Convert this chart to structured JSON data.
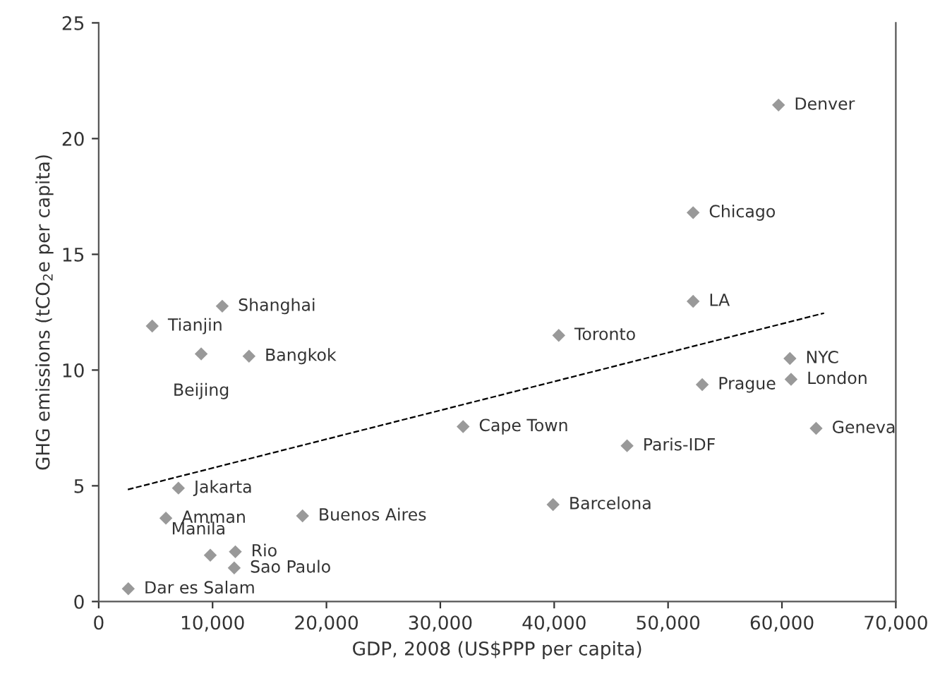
{
  "chart_data": {
    "type": "scatter",
    "xlabel": "GDP, 2008 (US$PPP per capita)",
    "ylabel": "GHG emissions (tCO$_{2}$e per capita)",
    "series": [
      {
        "type": "scatter",
        "color": "#999999",
        "marker": "diamond",
        "x": [
          59700,
          52200,
          52200,
          40400,
          60700,
          60800,
          53000,
          32000,
          63000,
          46400,
          39900,
          10850,
          4700,
          9000,
          13200,
          7000,
          5900,
          17900,
          9800,
          12000,
          11900,
          2600
        ],
        "values": [
          21.45,
          16.8,
          12.97,
          11.5,
          10.5,
          9.6,
          9.37,
          7.56,
          7.48,
          6.73,
          4.19,
          12.76,
          11.9,
          10.7,
          10.6,
          4.9,
          3.6,
          3.7,
          2.0,
          2.15,
          1.45,
          0.55
        ]
      },
      {
        "type": "line",
        "color": "#000000",
        "line_style": "dashed",
        "marker": "none",
        "x": [
          2560,
          63700
        ],
        "values": [
          4.84,
          12.46
        ]
      }
    ],
    "annotations": [
      {
        "text": "Denver",
        "x": 59700,
        "y": 21.45
      },
      {
        "text": "Chicago",
        "x": 52200,
        "y": 16.8
      },
      {
        "text": "LA",
        "x": 52200,
        "y": 12.97
      },
      {
        "text": "Toronto",
        "x": 40400,
        "y": 11.5
      },
      {
        "text": "NYC",
        "x": 60700,
        "y": 10.5
      },
      {
        "text": "London",
        "x": 60800,
        "y": 9.6
      },
      {
        "text": "Prague",
        "x": 53000,
        "y": 9.37
      },
      {
        "text": "Cape Town",
        "x": 32000,
        "y": 7.56
      },
      {
        "text": "Geneva",
        "x": 63000,
        "y": 7.48
      },
      {
        "text": "Paris-IDF",
        "x": 46400,
        "y": 6.73
      },
      {
        "text": "Barcelona",
        "x": 39900,
        "y": 4.19
      },
      {
        "text": "Shanghai",
        "x": 10850,
        "y": 12.76
      },
      {
        "text": "Tianjin",
        "x": 4700,
        "y": 11.9
      },
      {
        "text": "Beijing",
        "x": 9000,
        "y": 10.7
      },
      {
        "text": "Bangkok",
        "x": 13200,
        "y": 10.6
      },
      {
        "text": "Jakarta",
        "x": 7000,
        "y": 4.9
      },
      {
        "text": "Amman",
        "x": 5900,
        "y": 3.6
      },
      {
        "text": "Buenos Aires",
        "x": 17900,
        "y": 3.7
      },
      {
        "text": "Manila",
        "x": 9800,
        "y": 2.0
      },
      {
        "text": "Rio",
        "x": 12000,
        "y": 2.15
      },
      {
        "text": "Sao Paulo",
        "x": 11900,
        "y": 1.45
      },
      {
        "text": "Dar es Salam",
        "x": 2600,
        "y": 0.55
      }
    ],
    "xlim": [
      0,
      70000
    ],
    "xticks": [
      0,
      {
        "value": 10000,
        "label": "10,000"
      },
      {
        "value": 20000,
        "label": "20,000"
      },
      {
        "value": 30000,
        "label": "30,000"
      },
      {
        "value": 40000,
        "label": "40,000"
      },
      {
        "value": 50000,
        "label": "50,000"
      },
      {
        "value": 60000,
        "label": "60,000"
      },
      {
        "value": 70000,
        "label": "70,000"
      }
    ],
    "ylim": [
      0,
      25
    ],
    "yticks": [
      0,
      5,
      10,
      15,
      20,
      25
    ],
    "grid": false,
    "legend": false
  }
}
